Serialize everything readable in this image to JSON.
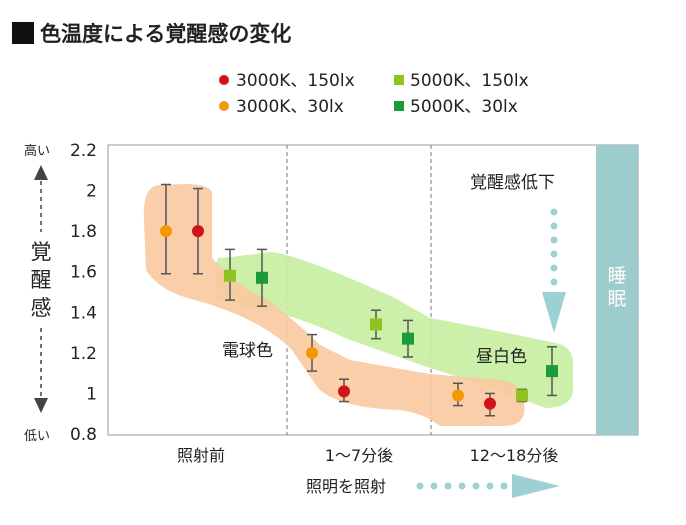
{
  "chart_data": {
    "type": "scatter",
    "title": "色温度による覚醒感の変化",
    "ylabel": "覚醒感",
    "y_high_label": "高い",
    "y_low_label": "低い",
    "ylim": [
      0.8,
      2.2
    ],
    "yticks": [
      "2.2",
      "2",
      "1.8",
      "1.6",
      "1.4",
      "1.2",
      "1",
      "0.8"
    ],
    "categories": [
      "照射前",
      "1～7分後",
      "12～18分後"
    ],
    "xlabel": "照明を照射",
    "legend": [
      "3000K、150lx",
      "5000K、150lx",
      "3000K、30lx",
      "5000K、30lx"
    ],
    "series": [
      {
        "name": "3000K、150lx",
        "marker": "circle",
        "color": "#d0131a",
        "points": [
          {
            "category": "照射前",
            "y": 1.8,
            "low": 1.59,
            "high": 2.01
          },
          {
            "category": "1～7分後",
            "y": 1.01,
            "low": 0.96,
            "high": 1.07
          },
          {
            "category": "12～18分後",
            "y": 0.95,
            "low": 0.89,
            "high": 1.0
          }
        ]
      },
      {
        "name": "3000K、30lx",
        "marker": "circle",
        "color": "#f39800",
        "points": [
          {
            "category": "照射前",
            "y": 1.8,
            "low": 1.59,
            "high": 2.03
          },
          {
            "category": "1～7分後",
            "y": 1.2,
            "low": 1.11,
            "high": 1.29
          },
          {
            "category": "12～18分後",
            "y": 0.99,
            "low": 0.94,
            "high": 1.05
          }
        ]
      },
      {
        "name": "5000K、150lx",
        "marker": "square",
        "color": "#8fc31f",
        "points": [
          {
            "category": "照射前",
            "y": 1.58,
            "low": 1.46,
            "high": 1.71
          },
          {
            "category": "1～7分後",
            "y": 1.34,
            "low": 1.27,
            "high": 1.41
          },
          {
            "category": "12～18分後",
            "y": 0.99,
            "low": 0.96,
            "high": 1.02
          }
        ]
      },
      {
        "name": "5000K、30lx",
        "marker": "square",
        "color": "#1a9a3a",
        "points": [
          {
            "category": "照射前",
            "y": 1.57,
            "low": 1.43,
            "high": 1.71
          },
          {
            "category": "1～7分後",
            "y": 1.27,
            "low": 1.18,
            "high": 1.36
          },
          {
            "category": "12～18分後",
            "y": 1.11,
            "low": 0.99,
            "high": 1.23
          }
        ]
      }
    ],
    "annotations": {
      "warm_band": "電球色",
      "cool_band": "昼白色",
      "decline": "覚醒感低下",
      "sleep": "睡眠"
    },
    "colors": {
      "warm_band": "#f8c9a0",
      "cool_band": "#c7eea0",
      "sleep_band": "#9ccccc",
      "arrow": "#9dd0d3"
    }
  }
}
